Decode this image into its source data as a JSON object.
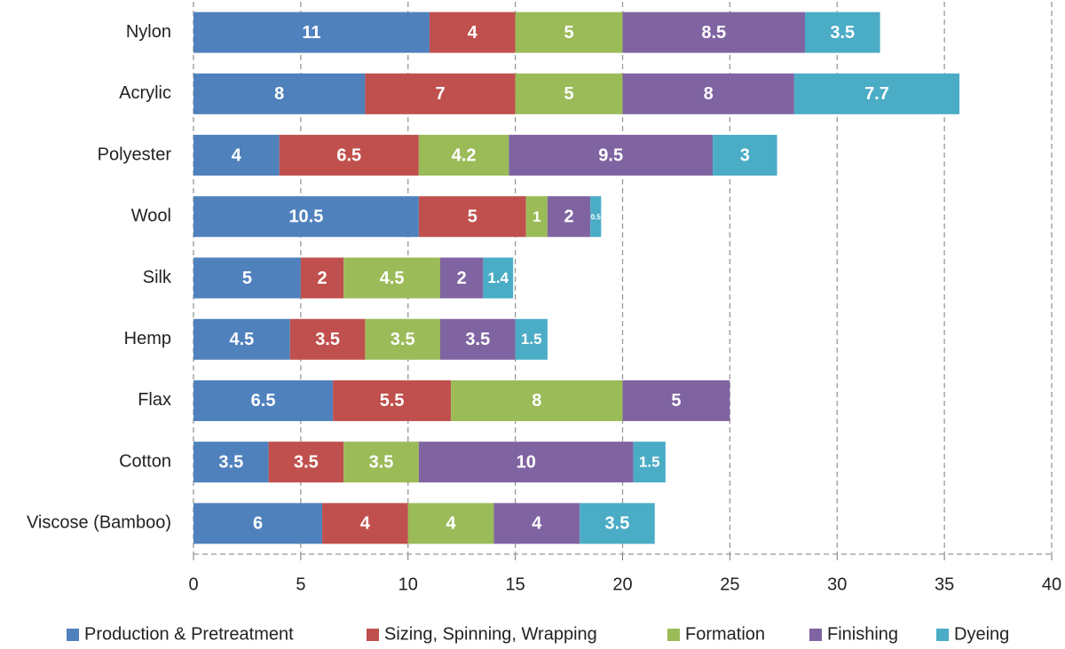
{
  "chart_data": {
    "type": "stacked-bar-horizontal",
    "categories": [
      "Nylon",
      "Acrylic",
      "Polyester",
      "Wool",
      "Silk",
      "Hemp",
      "Flax",
      "Cotton",
      "Viscose (Bamboo)"
    ],
    "series": [
      {
        "name": "Production & Pretreatment",
        "color": "#4f81bd",
        "values": [
          11,
          8,
          4,
          10.5,
          5,
          4.5,
          6.5,
          3.5,
          6
        ]
      },
      {
        "name": "Sizing, Spinning, Wrapping",
        "color": "#c0504d",
        "values": [
          4,
          7,
          6.5,
          5,
          2,
          3.5,
          5.5,
          3.5,
          4
        ]
      },
      {
        "name": "Formation",
        "color": "#9bbb59",
        "values": [
          5,
          5,
          4.2,
          1,
          4.5,
          3.5,
          8,
          3.5,
          4
        ]
      },
      {
        "name": "Finishing",
        "color": "#8064a2",
        "values": [
          8.5,
          8,
          9.5,
          2,
          2,
          3.5,
          5,
          10,
          4
        ]
      },
      {
        "name": "Dyeing",
        "color": "#4bacc6",
        "values": [
          3.5,
          7.7,
          3,
          0.5,
          1.4,
          1.5,
          null,
          1.5,
          3.5
        ]
      }
    ],
    "xlim": [
      0,
      40
    ],
    "xticks": [
      0,
      5,
      10,
      15,
      20,
      25,
      30,
      35,
      40
    ],
    "grid": true,
    "legend": "bottom"
  }
}
